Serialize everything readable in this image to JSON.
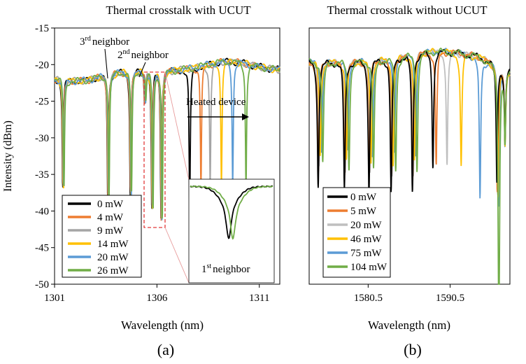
{
  "chart_data": [
    {
      "id": "a",
      "type": "line",
      "title": "Thermal crosstalk with UCUT",
      "xlabel": "Wavelength (nm)",
      "ylabel": "Intensity (dBm)",
      "panel_label": "(a)",
      "xlim": [
        1301.0,
        1312.0
      ],
      "ylim": [
        -50,
        -15
      ],
      "x_ticks": [
        1301,
        1306,
        1311
      ],
      "x_tick_labels": [
        "1301",
        "1306",
        "1311"
      ],
      "y_ticks": [
        -15,
        -20,
        -25,
        -30,
        -35,
        -40,
        -45,
        -50
      ],
      "y_tick_labels": [
        "-15",
        "-20",
        "-25",
        "-30",
        "-35",
        "-40",
        "-45",
        "-50"
      ],
      "legend_position": "bottom-left",
      "series": [
        {
          "name": "0 mW",
          "color": "#000000"
        },
        {
          "name": "4 mW",
          "color": "#ED7D31"
        },
        {
          "name": "9 mW",
          "color": "#A5A5A5"
        },
        {
          "name": "14 mW",
          "color": "#FFC000"
        },
        {
          "name": "20 mW",
          "color": "#5B9BD5"
        },
        {
          "name": "26 mW",
          "color": "#70AD47"
        }
      ],
      "common_dips": [
        {
          "x": 1301.4,
          "depth": -36
        },
        {
          "x": 1303.6,
          "depth": -38
        },
        {
          "x": 1304.7,
          "depth": -38
        },
        {
          "x": 1305.4,
          "depth": -25
        },
        {
          "x": 1305.75,
          "depth": -40
        },
        {
          "x": 1306.2,
          "depth": -41.5
        }
      ],
      "heated_dip": {
        "base_x": 1307.6,
        "shifts_nm": [
          0,
          0.55,
          1.0,
          1.55,
          2.1,
          2.75
        ],
        "depths": [
          -41,
          -37.5,
          -37.5,
          -37.5,
          -37.5,
          -37.5
        ]
      },
      "annotations": {
        "third_neighbor": {
          "sup": "rd",
          "ordinal": "3",
          "text": "neighbor",
          "target_x": 1303.6
        },
        "second_neighbor": {
          "sup": "nd",
          "ordinal": "2",
          "text": "neighbor",
          "target_x": 1305.4
        },
        "heated_device": {
          "text": "Heated device",
          "arrow_from_x": 1307.7,
          "arrow_to_x": 1310.7,
          "arrow_y": -26.3
        },
        "dashed_box": {
          "x0": 1305.55,
          "x1": 1306.5,
          "y0": -21.1,
          "y1": -43.4
        },
        "inset_label": {
          "sup": "st",
          "ordinal": "1",
          "text": "neighbor"
        }
      }
    },
    {
      "id": "b",
      "type": "line",
      "title": "Thermal crosstalk without UCUT",
      "xlabel": "Wavelength (nm)",
      "panel_label": "(b)",
      "xlim": [
        1573.3,
        1597.8
      ],
      "ylim": [
        -50,
        -15
      ],
      "x_ticks": [
        1580.5,
        1590.5
      ],
      "x_tick_labels": [
        "1580.5",
        "1590.5"
      ],
      "legend_position": "bottom-left",
      "series": [
        {
          "name": "0 mW",
          "color": "#000000"
        },
        {
          "name": "5 mW",
          "color": "#ED7D31"
        },
        {
          "name": "20 mW",
          "color": "#BFBFBF"
        },
        {
          "name": "46 mW",
          "color": "#FFC000"
        },
        {
          "name": "75 mW",
          "color": "#5B9BD5"
        },
        {
          "name": "104 mW",
          "color": "#70AD47"
        }
      ],
      "base_dips": [
        1574.4,
        1577.6,
        1580.6,
        1583.3,
        1585.9
      ],
      "dip_depths": [
        -36.5,
        -34.5,
        -34,
        -32.5,
        -31.5,
        -33.5
      ]
    }
  ]
}
